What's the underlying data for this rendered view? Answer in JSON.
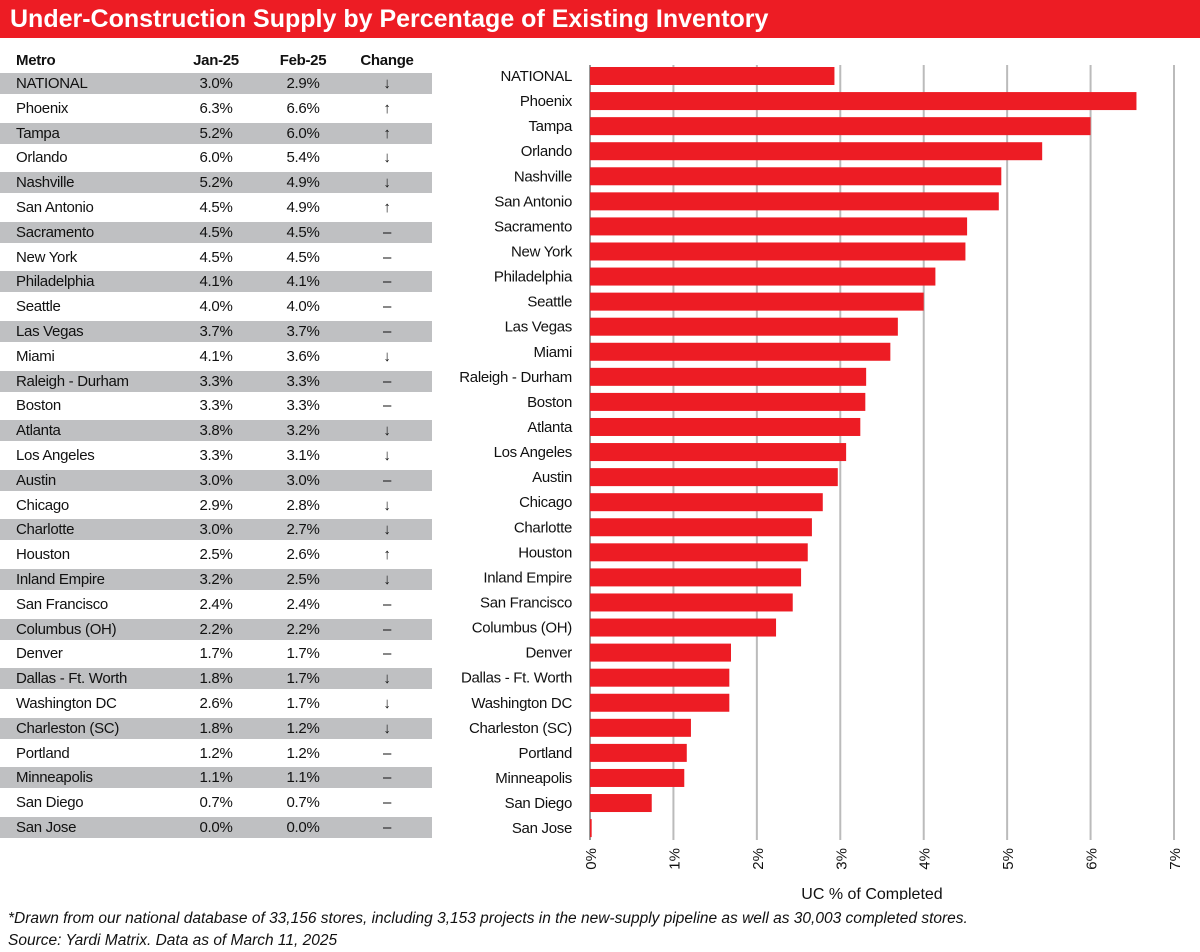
{
  "title": "Under-Construction Supply by Percentage of Existing Inventory",
  "table": {
    "headers": [
      "Metro",
      "Jan-25",
      "Feb-25",
      "Change"
    ],
    "rows": [
      [
        "NATIONAL",
        "3.0%",
        "2.9%",
        "↓"
      ],
      [
        "Phoenix",
        "6.3%",
        "6.6%",
        "↑"
      ],
      [
        "Tampa",
        "5.2%",
        "6.0%",
        "↑"
      ],
      [
        "Orlando",
        "6.0%",
        "5.4%",
        "↓"
      ],
      [
        "Nashville",
        "5.2%",
        "4.9%",
        "↓"
      ],
      [
        "San Antonio",
        "4.5%",
        "4.9%",
        "↑"
      ],
      [
        "Sacramento",
        "4.5%",
        "4.5%",
        "–"
      ],
      [
        "New York",
        "4.5%",
        "4.5%",
        "–"
      ],
      [
        "Philadelphia",
        "4.1%",
        "4.1%",
        "–"
      ],
      [
        "Seattle",
        "4.0%",
        "4.0%",
        "–"
      ],
      [
        "Las Vegas",
        "3.7%",
        "3.7%",
        "–"
      ],
      [
        "Miami",
        "4.1%",
        "3.6%",
        "↓"
      ],
      [
        "Raleigh - Durham",
        "3.3%",
        "3.3%",
        "–"
      ],
      [
        "Boston",
        "3.3%",
        "3.3%",
        "–"
      ],
      [
        "Atlanta",
        "3.8%",
        "3.2%",
        "↓"
      ],
      [
        "Los Angeles",
        "3.3%",
        "3.1%",
        "↓"
      ],
      [
        "Austin",
        "3.0%",
        "3.0%",
        "–"
      ],
      [
        "Chicago",
        "2.9%",
        "2.8%",
        "↓"
      ],
      [
        "Charlotte",
        "3.0%",
        "2.7%",
        "↓"
      ],
      [
        "Houston",
        "2.5%",
        "2.6%",
        "↑"
      ],
      [
        "Inland Empire",
        "3.2%",
        "2.5%",
        "↓"
      ],
      [
        "San Francisco",
        "2.4%",
        "2.4%",
        "–"
      ],
      [
        "Columbus (OH)",
        "2.2%",
        "2.2%",
        "–"
      ],
      [
        "Denver",
        "1.7%",
        "1.7%",
        "–"
      ],
      [
        "Dallas - Ft. Worth",
        "1.8%",
        "1.7%",
        "↓"
      ],
      [
        "Washington DC",
        "2.6%",
        "1.7%",
        "↓"
      ],
      [
        "Charleston (SC)",
        "1.8%",
        "1.2%",
        "↓"
      ],
      [
        "Portland",
        "1.2%",
        "1.2%",
        "–"
      ],
      [
        "Minneapolis",
        "1.1%",
        "1.1%",
        "–"
      ],
      [
        "San Diego",
        "0.7%",
        "0.7%",
        "–"
      ],
      [
        "San Jose",
        "0.0%",
        "0.0%",
        "–"
      ]
    ]
  },
  "chart_data": {
    "type": "bar",
    "orientation": "horizontal",
    "categories": [
      "NATIONAL",
      "Phoenix",
      "Tampa",
      "Orlando",
      "Nashville",
      "San Antonio",
      "Sacramento",
      "New York",
      "Philadelphia",
      "Seattle",
      "Las Vegas",
      "Miami",
      "Raleigh - Durham",
      "Boston",
      "Atlanta",
      "Los Angeles",
      "Austin",
      "Chicago",
      "Charlotte",
      "Houston",
      "Inland Empire",
      "San Francisco",
      "Columbus (OH)",
      "Denver",
      "Dallas - Ft. Worth",
      "Washington DC",
      "Charleston (SC)",
      "Portland",
      "Minneapolis",
      "San Diego",
      "San Jose"
    ],
    "values": [
      2.93,
      6.55,
      6.0,
      5.42,
      4.93,
      4.9,
      4.52,
      4.5,
      4.14,
      4.0,
      3.69,
      3.6,
      3.31,
      3.3,
      3.24,
      3.07,
      2.97,
      2.79,
      2.66,
      2.61,
      2.53,
      2.43,
      2.23,
      1.69,
      1.67,
      1.67,
      1.21,
      1.16,
      1.13,
      0.74,
      0.02
    ],
    "xlabel": "UC % of Completed",
    "xlim": [
      0,
      7
    ],
    "xticks": [
      "0%",
      "1%",
      "2%",
      "3%",
      "4%",
      "5%",
      "6%",
      "7%"
    ],
    "grid": true,
    "bar_color": "#ED1C24"
  },
  "footnote": [
    "*Drawn from our national database of 33,156 stores, including 3,153 projects in the new-supply pipeline as well as 30,003 completed stores.",
    "Source: Yardi Matrix. Data as of March 11, 2025"
  ]
}
